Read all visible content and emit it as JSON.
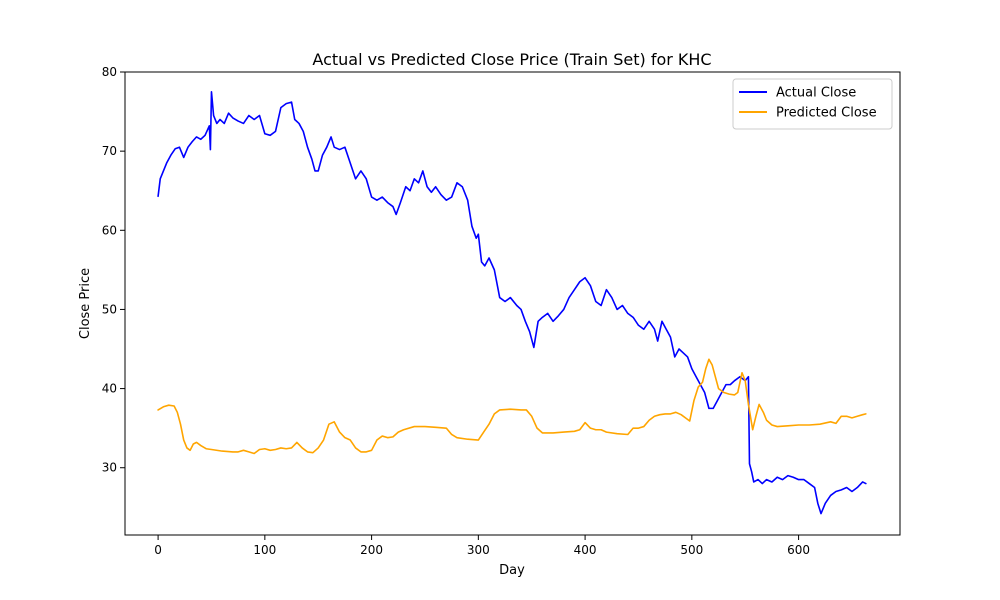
{
  "chart_data": {
    "type": "line",
    "title": "Actual vs Predicted Close Price (Train Set) for KHC",
    "xlabel": "Day",
    "ylabel": "Close Price",
    "xlim": [
      -31,
      695
    ],
    "ylim": [
      21.5,
      80
    ],
    "xticks": [
      0,
      100,
      200,
      300,
      400,
      500,
      600
    ],
    "yticks": [
      30,
      40,
      50,
      60,
      70,
      80
    ],
    "grid": false,
    "legend_position": "upper right",
    "series": [
      {
        "name": "Actual Close",
        "color": "#0000ff",
        "points": [
          [
            0,
            64.3
          ],
          [
            2,
            66.5
          ],
          [
            5,
            67.5
          ],
          [
            8,
            68.5
          ],
          [
            12,
            69.5
          ],
          [
            16,
            70.3
          ],
          [
            20,
            70.5
          ],
          [
            24,
            69.2
          ],
          [
            28,
            70.5
          ],
          [
            32,
            71.2
          ],
          [
            36,
            71.8
          ],
          [
            40,
            71.5
          ],
          [
            44,
            72.0
          ],
          [
            48,
            73.2
          ],
          [
            49,
            70.2
          ],
          [
            50,
            77.5
          ],
          [
            52,
            74.5
          ],
          [
            55,
            73.5
          ],
          [
            58,
            74.0
          ],
          [
            62,
            73.5
          ],
          [
            66,
            74.8
          ],
          [
            70,
            74.2
          ],
          [
            75,
            73.8
          ],
          [
            80,
            73.5
          ],
          [
            85,
            74.5
          ],
          [
            90,
            74.0
          ],
          [
            95,
            74.5
          ],
          [
            100,
            72.2
          ],
          [
            105,
            72.0
          ],
          [
            110,
            72.5
          ],
          [
            115,
            75.5
          ],
          [
            120,
            76.0
          ],
          [
            125,
            76.2
          ],
          [
            128,
            74.0
          ],
          [
            132,
            73.5
          ],
          [
            136,
            72.5
          ],
          [
            140,
            70.5
          ],
          [
            144,
            69.0
          ],
          [
            147,
            67.5
          ],
          [
            150,
            67.5
          ],
          [
            154,
            69.5
          ],
          [
            158,
            70.5
          ],
          [
            162,
            71.8
          ],
          [
            165,
            70.5
          ],
          [
            170,
            70.2
          ],
          [
            175,
            70.5
          ],
          [
            180,
            68.5
          ],
          [
            185,
            66.5
          ],
          [
            190,
            67.5
          ],
          [
            195,
            66.5
          ],
          [
            200,
            64.2
          ],
          [
            205,
            63.8
          ],
          [
            210,
            64.2
          ],
          [
            215,
            63.5
          ],
          [
            220,
            63.0
          ],
          [
            223,
            62.0
          ],
          [
            227,
            63.5
          ],
          [
            232,
            65.5
          ],
          [
            236,
            65.0
          ],
          [
            240,
            66.5
          ],
          [
            244,
            66.0
          ],
          [
            248,
            67.5
          ],
          [
            252,
            65.5
          ],
          [
            256,
            64.8
          ],
          [
            260,
            65.5
          ],
          [
            265,
            64.5
          ],
          [
            270,
            63.8
          ],
          [
            275,
            64.2
          ],
          [
            280,
            66.0
          ],
          [
            285,
            65.5
          ],
          [
            290,
            63.8
          ],
          [
            294,
            60.5
          ],
          [
            298,
            59.0
          ],
          [
            300,
            59.5
          ],
          [
            303,
            56.0
          ],
          [
            306,
            55.5
          ],
          [
            310,
            56.5
          ],
          [
            315,
            55.0
          ],
          [
            320,
            51.5
          ],
          [
            325,
            51.0
          ],
          [
            330,
            51.5
          ],
          [
            336,
            50.5
          ],
          [
            340,
            50.0
          ],
          [
            344,
            48.5
          ],
          [
            348,
            47.2
          ],
          [
            352,
            45.2
          ],
          [
            356,
            48.5
          ],
          [
            360,
            49.0
          ],
          [
            365,
            49.5
          ],
          [
            370,
            48.5
          ],
          [
            375,
            49.2
          ],
          [
            380,
            50.0
          ],
          [
            385,
            51.5
          ],
          [
            390,
            52.5
          ],
          [
            395,
            53.5
          ],
          [
            400,
            54.0
          ],
          [
            405,
            53.0
          ],
          [
            410,
            51.0
          ],
          [
            415,
            50.5
          ],
          [
            420,
            52.5
          ],
          [
            425,
            51.5
          ],
          [
            430,
            50.0
          ],
          [
            435,
            50.5
          ],
          [
            440,
            49.5
          ],
          [
            445,
            49.0
          ],
          [
            450,
            48.0
          ],
          [
            455,
            47.5
          ],
          [
            460,
            48.5
          ],
          [
            465,
            47.5
          ],
          [
            468,
            46.0
          ],
          [
            472,
            48.5
          ],
          [
            476,
            47.5
          ],
          [
            480,
            46.5
          ],
          [
            484,
            44.0
          ],
          [
            488,
            45.0
          ],
          [
            492,
            44.5
          ],
          [
            496,
            44.0
          ],
          [
            500,
            42.5
          ],
          [
            504,
            41.5
          ],
          [
            508,
            40.5
          ],
          [
            512,
            39.5
          ],
          [
            516,
            37.5
          ],
          [
            520,
            37.5
          ],
          [
            524,
            38.5
          ],
          [
            528,
            39.5
          ],
          [
            532,
            40.5
          ],
          [
            536,
            40.5
          ],
          [
            540,
            41.0
          ],
          [
            545,
            41.5
          ],
          [
            550,
            41.0
          ],
          [
            553,
            41.5
          ],
          [
            554,
            30.5
          ],
          [
            556,
            29.5
          ],
          [
            558,
            28.2
          ],
          [
            562,
            28.5
          ],
          [
            566,
            28.0
          ],
          [
            570,
            28.5
          ],
          [
            575,
            28.2
          ],
          [
            580,
            28.8
          ],
          [
            585,
            28.5
          ],
          [
            590,
            29.0
          ],
          [
            595,
            28.8
          ],
          [
            600,
            28.5
          ],
          [
            605,
            28.5
          ],
          [
            610,
            28.0
          ],
          [
            615,
            27.5
          ],
          [
            618,
            25.5
          ],
          [
            621,
            24.2
          ],
          [
            625,
            25.5
          ],
          [
            630,
            26.5
          ],
          [
            635,
            27.0
          ],
          [
            640,
            27.2
          ],
          [
            645,
            27.5
          ],
          [
            650,
            27.0
          ],
          [
            655,
            27.5
          ],
          [
            660,
            28.2
          ],
          [
            663,
            28.0
          ]
        ]
      },
      {
        "name": "Predicted Close",
        "color": "#ffa500",
        "points": [
          [
            0,
            37.3
          ],
          [
            5,
            37.7
          ],
          [
            10,
            37.9
          ],
          [
            15,
            37.8
          ],
          [
            18,
            37.0
          ],
          [
            21,
            35.5
          ],
          [
            24,
            33.5
          ],
          [
            27,
            32.5
          ],
          [
            30,
            32.2
          ],
          [
            33,
            33.0
          ],
          [
            36,
            33.2
          ],
          [
            40,
            32.8
          ],
          [
            45,
            32.4
          ],
          [
            50,
            32.3
          ],
          [
            60,
            32.1
          ],
          [
            70,
            32.0
          ],
          [
            75,
            32.0
          ],
          [
            80,
            32.2
          ],
          [
            85,
            32.0
          ],
          [
            90,
            31.8
          ],
          [
            95,
            32.3
          ],
          [
            100,
            32.4
          ],
          [
            105,
            32.2
          ],
          [
            110,
            32.3
          ],
          [
            115,
            32.5
          ],
          [
            120,
            32.4
          ],
          [
            125,
            32.5
          ],
          [
            130,
            33.2
          ],
          [
            135,
            32.5
          ],
          [
            140,
            32.0
          ],
          [
            145,
            31.9
          ],
          [
            150,
            32.5
          ],
          [
            155,
            33.5
          ],
          [
            160,
            35.5
          ],
          [
            165,
            35.8
          ],
          [
            170,
            34.5
          ],
          [
            175,
            33.8
          ],
          [
            180,
            33.5
          ],
          [
            185,
            32.5
          ],
          [
            190,
            32.0
          ],
          [
            195,
            32.0
          ],
          [
            200,
            32.2
          ],
          [
            205,
            33.5
          ],
          [
            210,
            34.0
          ],
          [
            215,
            33.8
          ],
          [
            220,
            33.9
          ],
          [
            225,
            34.5
          ],
          [
            230,
            34.8
          ],
          [
            240,
            35.2
          ],
          [
            250,
            35.2
          ],
          [
            260,
            35.1
          ],
          [
            270,
            35.0
          ],
          [
            275,
            34.2
          ],
          [
            280,
            33.8
          ],
          [
            290,
            33.6
          ],
          [
            300,
            33.5
          ],
          [
            305,
            34.5
          ],
          [
            310,
            35.5
          ],
          [
            315,
            36.8
          ],
          [
            320,
            37.3
          ],
          [
            330,
            37.4
          ],
          [
            340,
            37.3
          ],
          [
            345,
            37.3
          ],
          [
            350,
            36.5
          ],
          [
            355,
            35.0
          ],
          [
            360,
            34.4
          ],
          [
            370,
            34.4
          ],
          [
            380,
            34.5
          ],
          [
            390,
            34.6
          ],
          [
            395,
            34.8
          ],
          [
            400,
            35.7
          ],
          [
            405,
            35.0
          ],
          [
            410,
            34.8
          ],
          [
            415,
            34.8
          ],
          [
            420,
            34.5
          ],
          [
            430,
            34.3
          ],
          [
            440,
            34.2
          ],
          [
            445,
            35.0
          ],
          [
            450,
            35.0
          ],
          [
            455,
            35.2
          ],
          [
            460,
            36.0
          ],
          [
            465,
            36.5
          ],
          [
            470,
            36.7
          ],
          [
            475,
            36.8
          ],
          [
            480,
            36.8
          ],
          [
            485,
            37.0
          ],
          [
            490,
            36.7
          ],
          [
            495,
            36.2
          ],
          [
            498,
            35.9
          ],
          [
            502,
            38.5
          ],
          [
            506,
            40.2
          ],
          [
            510,
            40.8
          ],
          [
            513,
            42.5
          ],
          [
            516,
            43.7
          ],
          [
            519,
            43.0
          ],
          [
            522,
            41.5
          ],
          [
            525,
            40.0
          ],
          [
            530,
            39.5
          ],
          [
            535,
            39.3
          ],
          [
            540,
            39.2
          ],
          [
            543,
            39.5
          ],
          [
            547,
            42.0
          ],
          [
            550,
            41.0
          ],
          [
            553,
            38.0
          ],
          [
            557,
            34.8
          ],
          [
            560,
            36.5
          ],
          [
            563,
            38.0
          ],
          [
            567,
            37.0
          ],
          [
            570,
            36.0
          ],
          [
            575,
            35.4
          ],
          [
            580,
            35.2
          ],
          [
            590,
            35.3
          ],
          [
            600,
            35.4
          ],
          [
            610,
            35.4
          ],
          [
            620,
            35.5
          ],
          [
            630,
            35.8
          ],
          [
            635,
            35.6
          ],
          [
            640,
            36.5
          ],
          [
            645,
            36.5
          ],
          [
            650,
            36.3
          ],
          [
            655,
            36.5
          ],
          [
            660,
            36.7
          ],
          [
            663,
            36.8
          ]
        ]
      }
    ]
  }
}
